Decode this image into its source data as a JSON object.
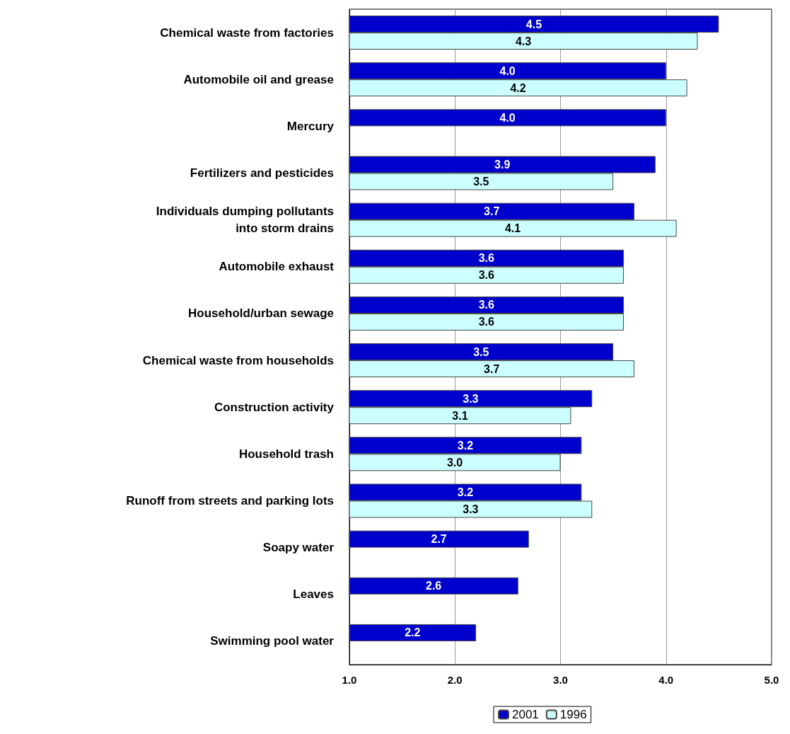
{
  "chart_data": {
    "type": "bar",
    "orientation": "horizontal",
    "categories": [
      "Chemical waste from factories",
      "Automobile oil and grease",
      "Mercury",
      "Fertilizers and pesticides",
      "Individuals dumping pollutants\ninto storm drains",
      "Automobile exhaust",
      "Household/urban sewage",
      "Chemical waste from households",
      "Construction activity",
      "Household trash",
      "Runoff from streets and parking lots",
      "Soapy water",
      "Leaves",
      "Swimming pool water"
    ],
    "series": [
      {
        "name": "2001",
        "color": "#0000cc",
        "values": [
          4.5,
          4.0,
          4.0,
          3.9,
          3.7,
          3.6,
          3.6,
          3.5,
          3.3,
          3.2,
          3.2,
          2.7,
          2.6,
          2.2
        ],
        "value_labels": [
          "4.5",
          "4.0",
          "4.0",
          "3.9",
          "3.7",
          "3.6",
          "3.6",
          "3.5",
          "3.3",
          "3.2",
          "3.2",
          "2.7",
          "2.6",
          "2.2"
        ]
      },
      {
        "name": "1996",
        "color": "#ccffff",
        "values": [
          4.3,
          4.2,
          null,
          3.5,
          4.1,
          3.6,
          3.6,
          3.7,
          3.1,
          3.0,
          3.3,
          null,
          null,
          null
        ],
        "value_labels": [
          "4.3",
          "4.2",
          null,
          "3.5",
          "4.1",
          "3.6",
          "3.6",
          "3.7",
          "3.1",
          "3.0",
          "3.3",
          null,
          null,
          null
        ]
      }
    ],
    "xlim": [
      1,
      5
    ],
    "xticks": [
      {
        "value": 1,
        "label": "1.0"
      },
      {
        "value": 2,
        "label": "2.0"
      },
      {
        "value": 3,
        "label": "3.0"
      },
      {
        "value": 4,
        "label": "4.0"
      },
      {
        "value": 5,
        "label": "5.0"
      }
    ],
    "grid": "x",
    "legend": "bottom"
  }
}
